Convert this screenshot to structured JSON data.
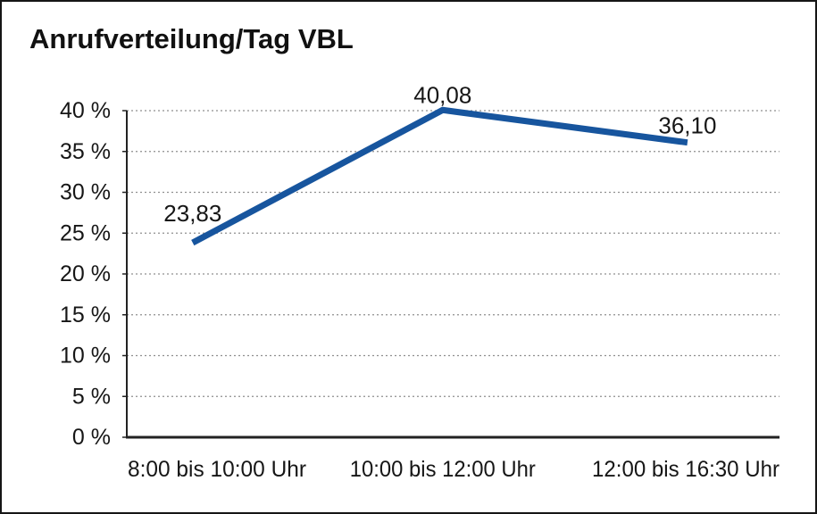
{
  "chart_data": {
    "type": "line",
    "title": "Anrufverteilung/Tag VBL",
    "categories": [
      "8:00 bis 10:00 Uhr",
      "10:00 bis 12:00 Uhr",
      "12:00 bis 16:30 Uhr"
    ],
    "values": [
      23.83,
      40.08,
      36.1
    ],
    "data_labels": [
      "23,83",
      "40,08",
      "36,10"
    ],
    "xlabel": "",
    "ylabel": "",
    "ylim": [
      0,
      40
    ],
    "ytick_step": 5,
    "ytick_labels": [
      "0 %",
      "5 %",
      "10 %",
      "15 %",
      "20 %",
      "25 %",
      "30 %",
      "35 %",
      "40 %"
    ],
    "grid": "horizontal dotted gridlines at each 5% step",
    "legend": "none",
    "line_color": "#17559e",
    "grid_color": "#8f8f8f",
    "axis_color": "#222222",
    "text_color": "#161616",
    "background_color": "#ffffff",
    "border_color": "#161616"
  }
}
